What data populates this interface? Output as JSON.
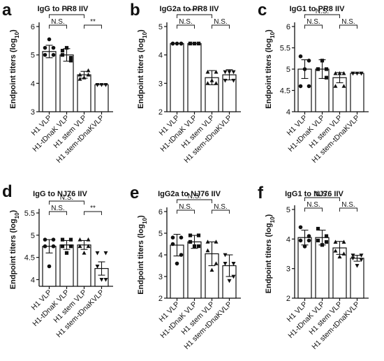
{
  "chart_data": [
    {
      "panel_label": "a",
      "type": "bar",
      "title": "IgG to PR8 IIV",
      "ylabel_main": "Endpoint titers (log",
      "ylabel_sub": "10",
      "ylabel_close": ")",
      "ylim": [
        3,
        6
      ],
      "yticks": [
        "3",
        "4",
        "5",
        "6"
      ],
      "categories": [
        "H1 VLP",
        "H1-tDnaK VLP",
        "H1 stem VLP",
        "H1 stem-tDnaKVLP"
      ],
      "values": [
        5.12,
        5.0,
        4.3,
        3.95
      ],
      "errors": [
        0.22,
        0.22,
        0.12,
        0.0
      ],
      "markers": [
        "circle",
        "square",
        "triangle",
        "triangle-down"
      ],
      "points": [
        [
          5.25,
          5.25,
          5.0,
          5.0,
          5.55
        ],
        [
          5.0,
          4.8,
          5.15,
          4.9,
          5.25
        ],
        [
          4.3,
          4.45,
          4.15,
          4.3,
          4.2
        ],
        [
          3.95,
          3.95,
          3.95,
          3.95,
          3.95
        ]
      ],
      "comparisons": [
        {
          "from": 0,
          "to": 1,
          "label": "N.S.",
          "level": 1
        },
        {
          "from": 0,
          "to": 2,
          "label": "*",
          "level": 2
        },
        {
          "from": 2,
          "to": 3,
          "label": "**",
          "level": 1
        }
      ]
    },
    {
      "panel_label": "b",
      "type": "bar",
      "title": "IgG2a to PR8 IIV",
      "ylabel_main": "Endpoint titers (log",
      "ylabel_sub": "10",
      "ylabel_close": ")",
      "ylim": [
        2,
        5
      ],
      "yticks": [
        "2",
        "3",
        "4",
        "5"
      ],
      "categories": [
        "H1 VLP",
        "H1-tDnaK VLP",
        "H1 stem VLP",
        "H1 stem-tDnaKVLP"
      ],
      "values": [
        4.4,
        4.4,
        3.2,
        3.3
      ],
      "errors": [
        0.0,
        0.0,
        0.25,
        0.18
      ],
      "markers": [
        "circle",
        "square",
        "triangle",
        "triangle-down"
      ],
      "points": [
        [
          4.4,
          4.4,
          4.4,
          4.4,
          4.4
        ],
        [
          4.4,
          4.4,
          4.4,
          4.4,
          4.4
        ],
        [
          3.4,
          3.0,
          3.0,
          3.4,
          3.1
        ],
        [
          3.4,
          3.4,
          3.1,
          3.1,
          3.4
        ]
      ],
      "comparisons": [
        {
          "from": 0,
          "to": 1,
          "label": "N.S.",
          "level": 1
        },
        {
          "from": 0,
          "to": 2,
          "label": "****",
          "level": 2
        },
        {
          "from": 2,
          "to": 3,
          "label": "N.S.",
          "level": 1
        }
      ]
    },
    {
      "panel_label": "c",
      "type": "bar",
      "title": "IgG1 to PR8 IIV",
      "ylabel_main": "Endpoint titers (log",
      "ylabel_sub": "10",
      "ylabel_close": ")",
      "ylim": [
        4,
        6
      ],
      "yticks": [
        "4",
        "4.5",
        "5",
        "5.5",
        "6"
      ],
      "categories": [
        "H1 VLP",
        "H1-tDnaK VLP",
        "H1 stem VLP",
        "H1 stem-tDnaKVLP"
      ],
      "values": [
        5.0,
        5.0,
        4.8,
        4.9
      ],
      "errors": [
        0.22,
        0.22,
        0.12,
        0.0
      ],
      "markers": [
        "circle",
        "square",
        "triangle",
        "triangle-down"
      ],
      "points": [
        [
          5.3,
          5.2,
          4.6,
          4.6,
          5.0
        ],
        [
          5.0,
          5.0,
          5.0,
          4.8,
          5.2
        ],
        [
          4.9,
          4.9,
          4.6,
          4.6,
          4.9
        ],
        [
          4.9,
          4.9,
          4.9,
          4.9,
          4.9
        ]
      ],
      "comparisons": [
        {
          "from": 0,
          "to": 1,
          "label": "N.S.",
          "level": 1
        },
        {
          "from": 0,
          "to": 2,
          "label": "N.S.",
          "level": 2
        },
        {
          "from": 2,
          "to": 3,
          "label": "N.S.",
          "level": 1
        }
      ]
    },
    {
      "panel_label": "d",
      "type": "bar",
      "title": "IgG to NJ76 IIV",
      "ylabel_main": "Endpoint titers (log",
      "ylabel_sub": "10",
      "ylabel_close": ")",
      "ylim": [
        3.85,
        5.5
      ],
      "yticks": [
        "4",
        "4.5",
        "5",
        "5.5"
      ],
      "ytick_values": [
        4,
        4.5,
        5,
        5.5
      ],
      "categories": [
        "H1 VLP",
        "H1-tDnaK VLP",
        "H1 stem VLP",
        "H1 stem-tDnaKVLP"
      ],
      "values": [
        4.75,
        4.78,
        4.78,
        4.25
      ],
      "errors": [
        0.15,
        0.1,
        0.1,
        0.15
      ],
      "markers": [
        "circle",
        "square",
        "triangle",
        "triangle-down"
      ],
      "points": [
        [
          4.9,
          4.9,
          4.75,
          4.75,
          4.3
        ],
        [
          4.9,
          4.9,
          4.75,
          4.75,
          4.6
        ],
        [
          4.9,
          4.9,
          4.75,
          4.75,
          4.6
        ],
        [
          4.6,
          4.6,
          4.3,
          4.0,
          4.0
        ]
      ],
      "comparisons": [
        {
          "from": 0,
          "to": 1,
          "label": "N.S.",
          "level": 1
        },
        {
          "from": 0,
          "to": 2,
          "label": "N.S.",
          "level": 2
        },
        {
          "from": 2,
          "to": 3,
          "label": "**",
          "level": 1
        }
      ]
    },
    {
      "panel_label": "e",
      "type": "bar",
      "title": "IgG2a to NJ76 IIV",
      "ylabel_main": "Endpoint titers (log",
      "ylabel_sub": "10",
      "ylabel_close": ")",
      "ylim": [
        2,
        6
      ],
      "yticks": [
        "2",
        "3",
        "4",
        "5",
        "6"
      ],
      "categories": [
        "H1 VLP",
        "H1-tDnaK VLP",
        "H1 stem VLP",
        "H1 stem-tDnaKVLP"
      ],
      "values": [
        4.45,
        4.6,
        4.05,
        3.5
      ],
      "errors": [
        0.5,
        0.3,
        0.55,
        0.5
      ],
      "markers": [
        "circle",
        "square",
        "triangle",
        "triangle-down"
      ],
      "points": [
        [
          4.8,
          4.8,
          4.5,
          4.0,
          3.6
        ],
        [
          4.9,
          4.9,
          4.6,
          4.4,
          4.4
        ],
        [
          4.6,
          4.6,
          4.2,
          3.6,
          3.3
        ],
        [
          4.0,
          3.6,
          3.6,
          3.0,
          2.8
        ]
      ],
      "comparisons": [
        {
          "from": 0,
          "to": 1,
          "label": "N.S.",
          "level": 1
        },
        {
          "from": 0,
          "to": 2,
          "label": "N.S.",
          "level": 2
        },
        {
          "from": 2,
          "to": 3,
          "label": "N.S.",
          "level": 1
        }
      ]
    },
    {
      "panel_label": "f",
      "type": "bar",
      "title": "IgG1 to NJ76 IIV",
      "ylabel_main": "Endpoint titers (log",
      "ylabel_sub": "10",
      "ylabel_close": ")",
      "ylim": [
        2,
        5
      ],
      "yticks": [
        "2",
        "3",
        "4",
        "5"
      ],
      "categories": [
        "H1 VLP",
        "H1-tDnaK VLP",
        "H1 stem VLP",
        "H1 stem-tDnaKVLP"
      ],
      "values": [
        4.05,
        4.05,
        3.7,
        3.35
      ],
      "errors": [
        0.25,
        0.25,
        0.22,
        0.1
      ],
      "markers": [
        "circle",
        "square",
        "triangle",
        "triangle-down"
      ],
      "points": [
        [
          4.4,
          4.1,
          3.95,
          3.95,
          3.75
        ],
        [
          4.35,
          4.1,
          3.95,
          3.9,
          3.8
        ],
        [
          3.9,
          3.9,
          3.6,
          3.5,
          3.4
        ],
        [
          3.45,
          3.45,
          3.35,
          3.3,
          3.1
        ]
      ],
      "comparisons": [
        {
          "from": 0,
          "to": 1,
          "label": "N.S.",
          "level": 1
        },
        {
          "from": 0,
          "to": 2,
          "label": "N.S.",
          "level": 2
        },
        {
          "from": 2,
          "to": 3,
          "label": "N.S.",
          "level": 1
        }
      ]
    }
  ]
}
